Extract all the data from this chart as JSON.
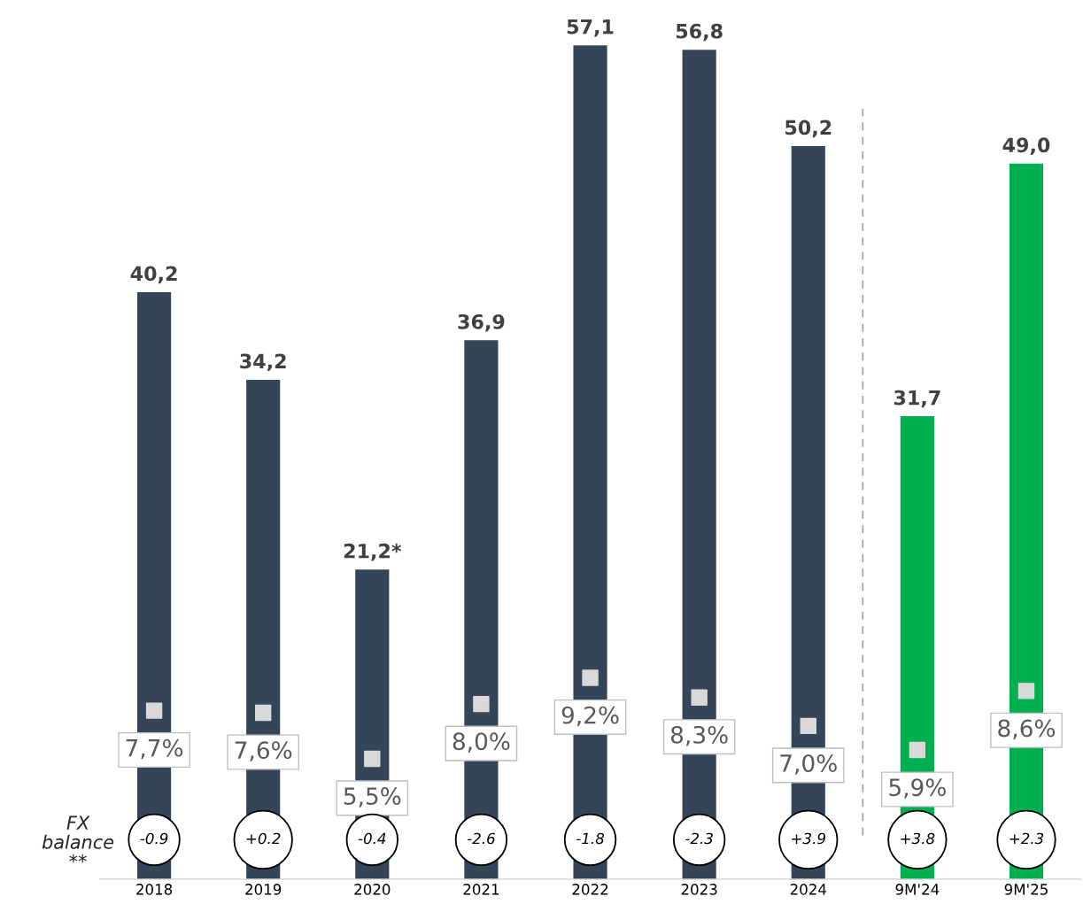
{
  "chart_data": {
    "type": "bar",
    "categories": [
      "2018",
      "2019",
      "2020",
      "2021",
      "2022",
      "2023",
      "2024",
      "9M'24",
      "9M'25"
    ],
    "series": [
      {
        "values": [
          40.2,
          34.2,
          21.2,
          36.9,
          57.1,
          56.8,
          50.2,
          31.7,
          49.0
        ],
        "colors": [
          "#344459",
          "#344459",
          "#344459",
          "#344459",
          "#344459",
          "#344459",
          "#344459",
          "#00b050",
          "#00b050"
        ],
        "value_labels": [
          "40,2",
          "34,2",
          "21,2*",
          "36,9",
          "57,1",
          "56,8",
          "50,2",
          "31,7",
          "49,0"
        ]
      },
      {
        "type": "scatter",
        "axis": "y2",
        "color": "#d9d9d9",
        "values": [
          7.7,
          7.6,
          5.5,
          8.0,
          9.2,
          8.3,
          7.0,
          5.9,
          8.6
        ],
        "value_labels": [
          "7,7%",
          "7,6%",
          "5,5%",
          "8,0%",
          "9,2%",
          "8,3%",
          "7,0%",
          "5,9%",
          "8,6%"
        ]
      }
    ],
    "marker": "square",
    "tick_labels": "x",
    "annotations": [
      "FX balance **",
      "-0.9",
      "+0.2",
      "-0.4",
      "-2.6",
      "-1.8",
      "-2.3",
      "+3.9",
      "+3.8",
      "+2.3"
    ]
  }
}
